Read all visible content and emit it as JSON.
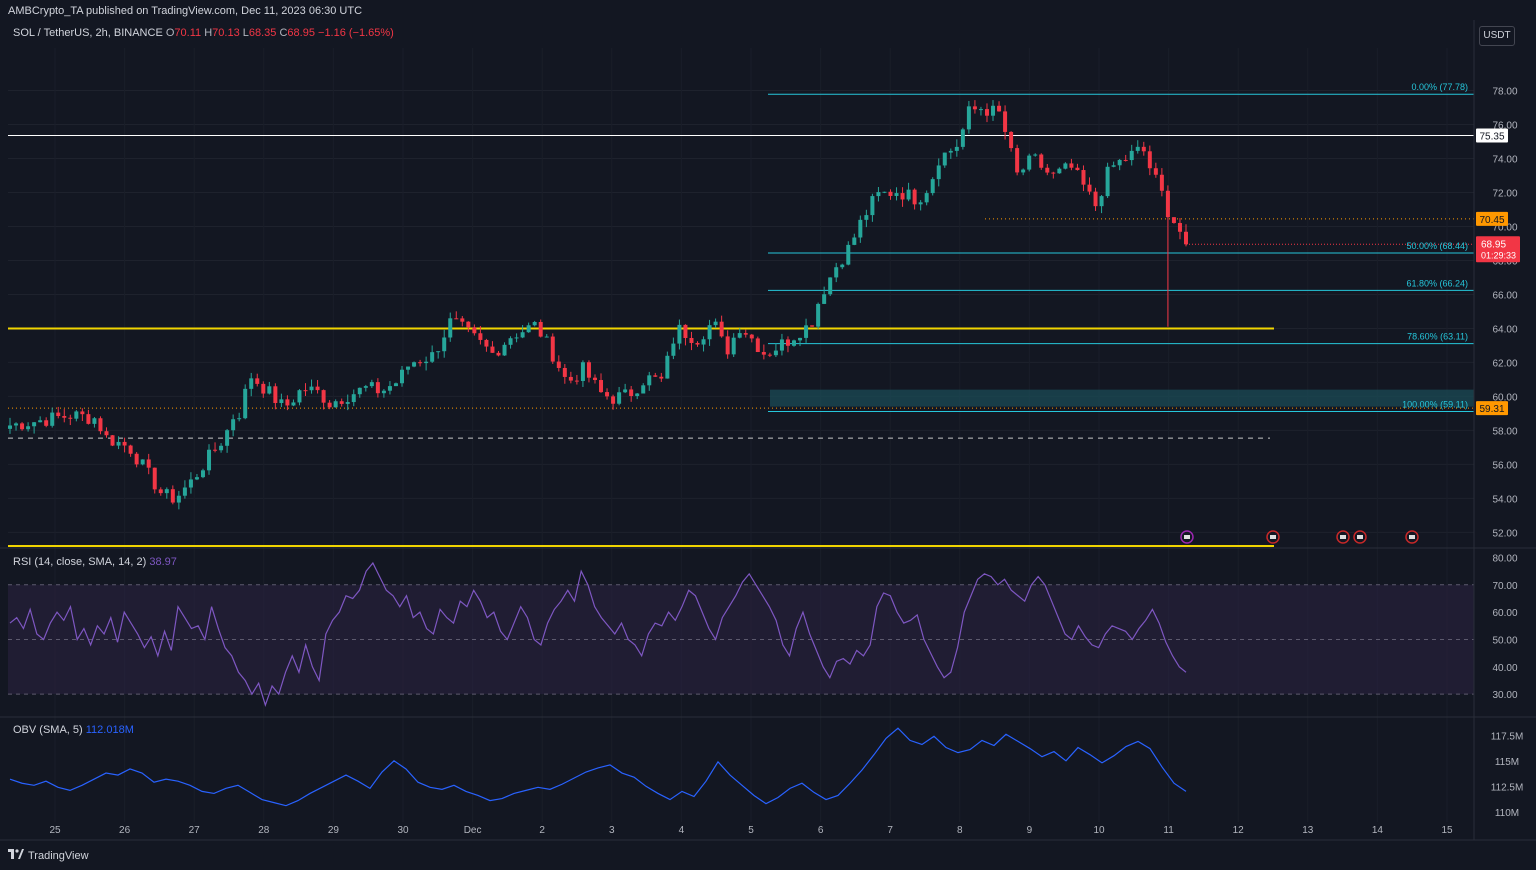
{
  "header": {
    "published_line": "AMBCrypto_TA published on TradingView.com, Dec 11, 2023 06:30 UTC",
    "symbol": "SOL / TetherUS, 2h, BINANCE",
    "open_label": "O",
    "open": "70.11",
    "high_label": "H",
    "high": "70.13",
    "low_label": "L",
    "low": "68.35",
    "close_label": "C",
    "close": "68.95",
    "change": "−1.16 (−1.65%)",
    "currency_button": "USDT"
  },
  "branding": {
    "logo_text": "TradingView"
  },
  "colors": {
    "background": "#131722",
    "up": "#26a69a",
    "down": "#f23645",
    "fib": "#26c6da",
    "support_yellow": "#f0d400",
    "resistance_white": "#ffffff",
    "rsi_line": "#7e57c2",
    "obv_line": "#2962ff",
    "price_tag": "#f23645",
    "level_tag_orange": "#ff9800"
  },
  "chart_data": [
    {
      "type": "candlestick",
      "pair": "SOL / TetherUS",
      "timeframe": "2h",
      "exchange": "BINANCE",
      "x_axis_ticks": [
        "25",
        "26",
        "27",
        "28",
        "29",
        "30",
        "Dec",
        "2",
        "3",
        "4",
        "5",
        "6",
        "7",
        "8",
        "9",
        "10",
        "11",
        "12",
        "13",
        "14",
        "15"
      ],
      "y_axis_ticks": [
        "78.00",
        "76.00",
        "74.00",
        "72.00",
        "70.00",
        "68.00",
        "66.00",
        "64.00",
        "62.00",
        "60.00",
        "58.00",
        "56.00",
        "54.00",
        "52.00"
      ],
      "ylim": [
        51.2,
        80.5
      ],
      "last_price": "68.95",
      "countdown": "01:29:33",
      "price_path": [
        [
          0,
          58.3
        ],
        [
          1.5,
          58.6
        ],
        [
          3,
          58.9
        ],
        [
          4.2,
          58.7
        ],
        [
          4.6,
          57.6
        ],
        [
          5.8,
          57.0
        ],
        [
          6.6,
          55.6
        ],
        [
          7.4,
          54.2
        ],
        [
          8,
          54.0
        ],
        [
          8.8,
          55.0
        ],
        [
          9.5,
          56.2
        ],
        [
          10.4,
          57.6
        ],
        [
          10.8,
          58.8
        ],
        [
          11.2,
          59.1
        ],
        [
          11.6,
          61.3
        ],
        [
          12.5,
          60.3
        ],
        [
          13.3,
          59.3
        ],
        [
          14.2,
          60.5
        ],
        [
          15,
          60.2
        ],
        [
          15.5,
          59.6
        ],
        [
          16.2,
          60.0
        ],
        [
          17.3,
          60.5
        ],
        [
          18,
          60.3
        ],
        [
          18.8,
          60.9
        ],
        [
          19.4,
          62.0
        ],
        [
          20.5,
          62.4
        ],
        [
          21.4,
          64.5
        ],
        [
          22.4,
          63.5
        ],
        [
          23.4,
          62.5
        ],
        [
          24.3,
          63.6
        ],
        [
          25.5,
          64.2
        ],
        [
          26.4,
          62.3
        ],
        [
          27,
          60.8
        ],
        [
          27.8,
          61.6
        ],
        [
          28.6,
          60.2
        ],
        [
          29.2,
          59.9
        ],
        [
          30,
          60.1
        ],
        [
          30.8,
          61.1
        ],
        [
          31.6,
          60.9
        ],
        [
          32.3,
          64.0
        ],
        [
          33.3,
          63.4
        ],
        [
          34.1,
          64.4
        ],
        [
          34.7,
          62.6
        ],
        [
          35.4,
          64.2
        ],
        [
          35.9,
          63.5
        ],
        [
          36.6,
          62.5
        ],
        [
          37.7,
          63.3
        ],
        [
          38.3,
          63.9
        ],
        [
          38.8,
          64.2
        ],
        [
          39.3,
          66.0
        ],
        [
          40.1,
          67.8
        ],
        [
          40.7,
          68.8
        ],
        [
          41.3,
          70.4
        ],
        [
          42.0,
          71.8
        ],
        [
          43.0,
          72.1
        ],
        [
          44.0,
          71.6
        ],
        [
          44.6,
          72.5
        ],
        [
          45.0,
          74.0
        ],
        [
          45.6,
          74.5
        ],
        [
          46.1,
          75.0
        ],
        [
          46.3,
          76.6
        ],
        [
          47.0,
          77.0
        ],
        [
          48.0,
          76.6
        ],
        [
          48.8,
          73.0
        ],
        [
          49.6,
          74.0
        ],
        [
          50.5,
          72.9
        ],
        [
          51.4,
          73.5
        ],
        [
          52.0,
          72.4
        ],
        [
          52.6,
          71.2
        ],
        [
          53.3,
          73.4
        ],
        [
          54.2,
          74.1
        ],
        [
          54.9,
          74.6
        ],
        [
          55.2,
          73.6
        ],
        [
          55.8,
          72.0
        ],
        [
          56.2,
          70.7
        ],
        [
          56.6,
          70.0
        ],
        [
          57.0,
          68.95
        ]
      ],
      "horizontal_levels": [
        {
          "price": 75.35,
          "label": "75.35",
          "style": "white"
        },
        {
          "price": 70.45,
          "label": "70.45",
          "style": "orange-dotted"
        },
        {
          "price": 64.0,
          "label": "",
          "style": "yellow"
        },
        {
          "price": 59.31,
          "label": "59.31",
          "style": "orange-dotted"
        },
        {
          "price": 57.55,
          "label": "",
          "style": "white-dashed"
        },
        {
          "price": 51.2,
          "label": "",
          "style": "yellow"
        }
      ],
      "fibonacci": [
        {
          "ratio": "0.00%",
          "price": 77.78,
          "label": "0.00% (77.78)"
        },
        {
          "ratio": "50.00%",
          "price": 68.44,
          "label": "50.00% (68.44)"
        },
        {
          "ratio": "61.80%",
          "price": 66.24,
          "label": "61.80% (66.24)"
        },
        {
          "ratio": "78.60%",
          "price": 63.11,
          "label": "78.60% (63.11)"
        },
        {
          "ratio": "100.00%",
          "price": 59.11,
          "label": "100.00% (59.11)"
        }
      ],
      "demand_zone": {
        "from": 59.4,
        "to": 60.4
      }
    },
    {
      "type": "line",
      "indicator": "RSI",
      "params": "RSI (14, close, SMA, 14, 2)",
      "last_value": "38.97",
      "y_axis_ticks": [
        "80.00",
        "70.00",
        "60.00",
        "50.00",
        "40.00",
        "30.00"
      ],
      "ylim": [
        22,
        82
      ],
      "bands": [
        70,
        50,
        30
      ],
      "values": [
        56,
        58,
        54,
        61,
        52,
        50,
        56,
        60,
        57,
        62,
        50,
        54,
        48,
        55,
        52,
        58,
        49,
        60,
        56,
        52,
        47,
        51,
        44,
        53,
        46,
        62,
        58,
        54,
        55,
        50,
        62,
        54,
        47,
        44,
        38,
        35,
        30,
        34,
        26,
        33,
        30,
        38,
        44,
        38,
        48,
        40,
        35,
        52,
        57,
        60,
        66,
        65,
        68,
        75,
        78,
        73,
        68,
        66,
        62,
        66,
        58,
        60,
        54,
        52,
        61,
        58,
        56,
        64,
        62,
        68,
        64,
        58,
        60,
        53,
        50,
        56,
        62,
        58,
        50,
        48,
        56,
        61,
        64,
        68,
        64,
        75,
        70,
        62,
        58,
        55,
        52,
        56,
        50,
        48,
        44,
        52,
        56,
        55,
        60,
        57,
        62,
        68,
        66,
        60,
        54,
        50,
        58,
        62,
        66,
        71,
        74,
        70,
        66,
        62,
        57,
        48,
        44,
        54,
        60,
        52,
        46,
        40,
        36,
        42,
        43,
        41,
        46,
        44,
        48,
        62,
        67,
        66,
        60,
        56,
        57,
        59,
        50,
        45,
        40,
        36,
        38,
        47,
        60,
        66,
        72,
        74,
        73,
        70,
        72,
        68,
        66,
        64,
        70,
        73,
        70,
        64,
        58,
        52,
        50,
        55,
        51,
        48,
        47,
        52,
        55,
        54,
        53,
        50,
        54,
        57,
        61,
        56,
        49,
        44,
        40,
        38
      ],
      "values_note": "approximate"
    },
    {
      "type": "line",
      "indicator": "OBV",
      "params": "OBV (SMA, 5)",
      "last_value": "112.018M",
      "y_axis_ticks": [
        "117.5M",
        "115M",
        "112.5M",
        "110M"
      ],
      "ylim": [
        109.0,
        119.0
      ],
      "values": [
        113.2,
        112.8,
        112.6,
        113.0,
        112.4,
        112.1,
        112.6,
        113.2,
        113.8,
        113.6,
        114.2,
        113.8,
        112.9,
        113.2,
        113.0,
        112.6,
        112.0,
        111.8,
        112.3,
        112.6,
        111.9,
        111.2,
        110.9,
        110.6,
        111.1,
        111.8,
        112.4,
        113.0,
        113.6,
        113.0,
        112.3,
        113.9,
        115.0,
        114.2,
        112.9,
        112.4,
        112.2,
        112.6,
        112.0,
        111.6,
        111.1,
        111.3,
        111.8,
        112.1,
        112.4,
        112.2,
        112.7,
        113.3,
        113.9,
        114.3,
        114.6,
        113.8,
        113.4,
        112.5,
        111.8,
        111.2,
        112.0,
        111.5,
        113.0,
        114.9,
        113.6,
        112.6,
        111.6,
        110.8,
        111.4,
        112.3,
        112.8,
        111.9,
        111.2,
        111.6,
        112.8,
        114.1,
        115.6,
        117.2,
        118.2,
        117.0,
        116.6,
        117.4,
        116.3,
        115.8,
        116.1,
        117.0,
        116.5,
        117.6,
        116.9,
        116.2,
        115.4,
        115.9,
        115.0,
        116.3,
        115.6,
        114.8,
        115.5,
        116.4,
        116.9,
        116.2,
        114.4,
        112.8,
        112.0
      ],
      "values_note": "approximate"
    }
  ]
}
